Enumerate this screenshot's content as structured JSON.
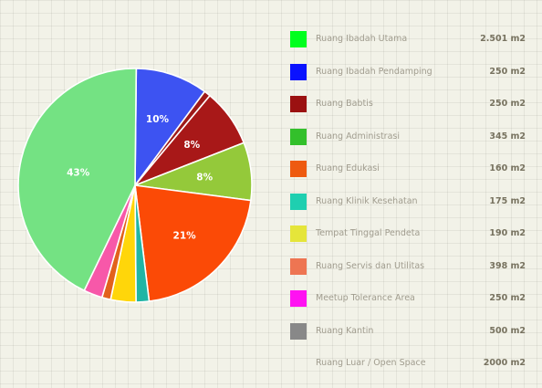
{
  "chart_data": {
    "type": "pie",
    "slices": [
      {
        "label": "Ruang Ibadah Pendamping",
        "percent": 10,
        "color": "#3d53f2",
        "label_shown": "10%"
      },
      {
        "label": "Ruang Babtis",
        "percent": 0.9,
        "color": "#9e1a1a",
        "label_shown": ""
      },
      {
        "label": "Ruang Babtis",
        "percent": 8,
        "color": "#a81818",
        "label_shown": "8%"
      },
      {
        "label": "Ruang Administrasi",
        "percent": 8,
        "color": "#94c93a",
        "label_shown": "8%"
      },
      {
        "label": "Ruang Edukasi",
        "percent": 21,
        "color": "#fb4a06",
        "label_shown": "21%"
      },
      {
        "label": "Ruang Klinik Kesehatan",
        "percent": 1.8,
        "color": "#21b5a5",
        "label_shown": ""
      },
      {
        "label": "Tempat Tinggal Pendeta",
        "percent": 3.5,
        "color": "#ffd60a",
        "label_shown": ""
      },
      {
        "label": "Ruang Servis dan Utilitas",
        "percent": 1.2,
        "color": "#e2611c",
        "label_shown": ""
      },
      {
        "label": "Meetup Tolerance Area",
        "percent": 2.6,
        "color": "#f758a9",
        "label_shown": ""
      },
      {
        "label": "Ruang Luar / Open Space",
        "percent": 43,
        "color": "#74e283",
        "label_shown": "43%"
      }
    ],
    "legend": [
      {
        "label": "Ruang Ibadah Utama",
        "value": "2.501 m2",
        "color": "#00ff1e"
      },
      {
        "label": "Ruang Ibadah Pendamping",
        "value": "250 m2",
        "color": "#0a12ff"
      },
      {
        "label": "Ruang Babtis",
        "value": "250 m2",
        "color": "#9b1111"
      },
      {
        "label": "Ruang Administrasi",
        "value": "345 m2",
        "color": "#33c02b"
      },
      {
        "label": "Ruang Edukasi",
        "value": "160 m2",
        "color": "#ee5a10"
      },
      {
        "label": "Ruang Klinik Kesehatan",
        "value": "175 m2",
        "color": "#1fcfb0"
      },
      {
        "label": "Tempat Tinggal Pendeta",
        "value": "190 m2",
        "color": "#e5e53a"
      },
      {
        "label": "Ruang Servis dan Utilitas",
        "value": "398 m2",
        "color": "#ee7552"
      },
      {
        "label": "Meetup Tolerance Area",
        "value": "250 m2",
        "color": "#ff11f2"
      },
      {
        "label": "Ruang Kantin",
        "value": "500 m2",
        "color": "#888888"
      },
      {
        "label": "Ruang Luar  /  Open Space",
        "value": "2000 m2",
        "color": ""
      }
    ]
  }
}
